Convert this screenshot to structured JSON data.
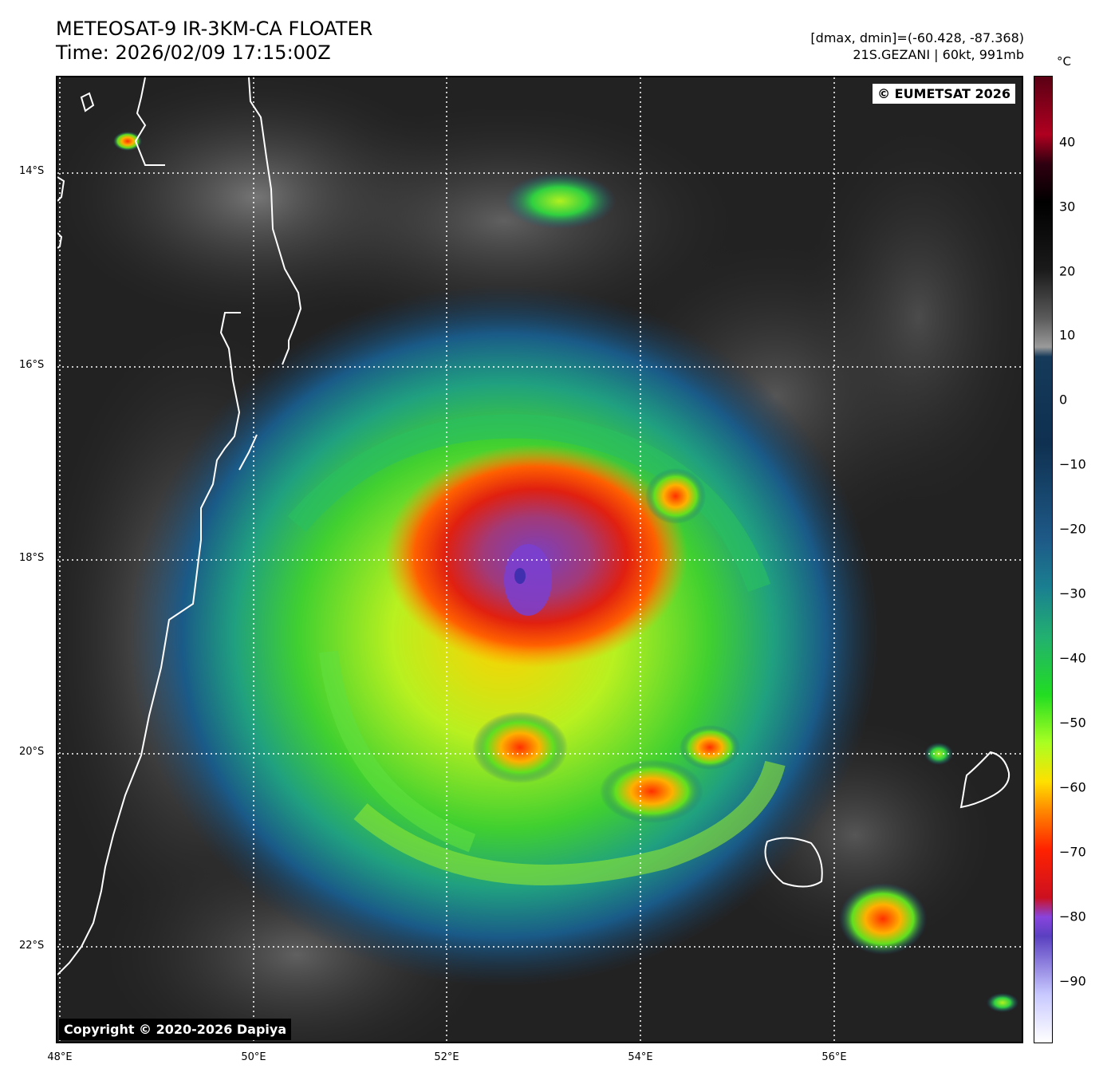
{
  "title": {
    "line1": "METEOSAT-9 IR-3KM-CA FLOATER",
    "line2": "Time: 2026/02/09 17:15:00Z"
  },
  "info": {
    "line1": "[dmax, dmin]=(-60.428, -87.368)",
    "line2": "21S.GEZANI | 60kt, 991mb"
  },
  "badges": {
    "eumetsat": "© EUMETSAT 2026",
    "copyright": "Copyright © 2020-2026 Dapiya"
  },
  "map": {
    "lat_labels": [
      "14°S",
      "16°S",
      "18°S",
      "20°S",
      "22°S"
    ],
    "lon_labels": [
      "48°E",
      "50°E",
      "52°E",
      "54°E",
      "56°E"
    ]
  },
  "colorbar": {
    "unit": "°C",
    "tick_labels": [
      "40",
      "30",
      "20",
      "10",
      "0",
      "−10",
      "−20",
      "−30",
      "−40",
      "−50",
      "−60",
      "−70",
      "−80",
      "−90"
    ]
  }
}
